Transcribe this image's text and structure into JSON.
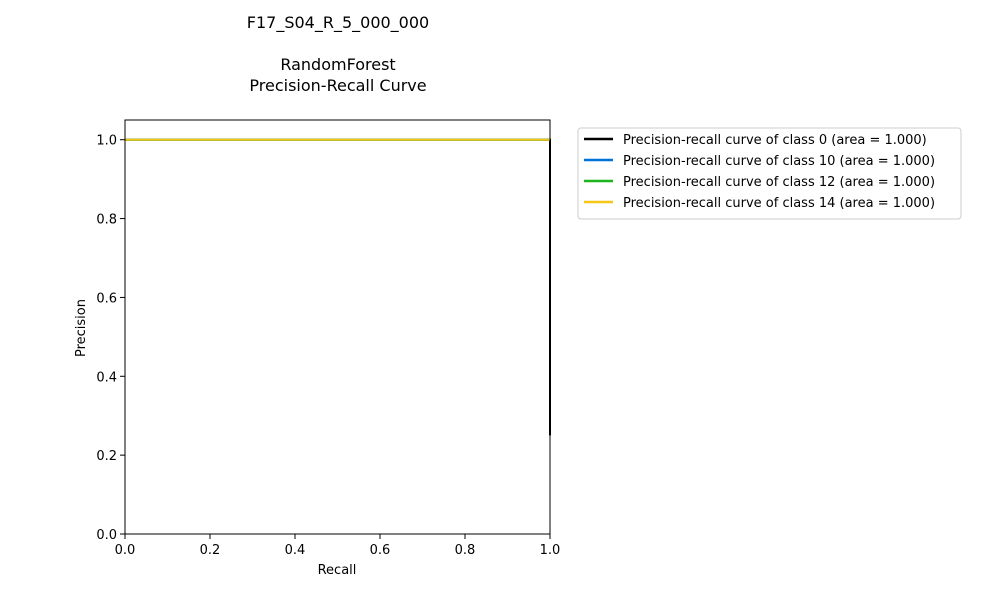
{
  "chart_data": {
    "type": "line",
    "title_lines": [
      "F17_S04_R_5_000_000",
      "",
      "RandomForest",
      "Precision-Recall Curve"
    ],
    "xlabel": "Recall",
    "ylabel": "Precision",
    "xlim": [
      0.0,
      1.0
    ],
    "ylim": [
      0.0,
      1.05
    ],
    "xticks": [
      "0.0",
      "0.2",
      "0.4",
      "0.6",
      "0.8",
      "1.0"
    ],
    "yticks": [
      "0.0",
      "0.2",
      "0.4",
      "0.6",
      "0.8",
      "1.0"
    ],
    "xtick_values": [
      0.0,
      0.2,
      0.4,
      0.6,
      0.8,
      1.0
    ],
    "ytick_values": [
      0.0,
      0.2,
      0.4,
      0.6,
      0.8,
      1.0
    ],
    "grid": false,
    "legend_position": "outside-top-right",
    "series": [
      {
        "name": "Precision-recall curve of class 0 (area = 1.000)",
        "color": "#000000",
        "x": [
          0.0,
          1.0,
          1.0
        ],
        "y": [
          1.0,
          1.0,
          0.25
        ]
      },
      {
        "name": "Precision-recall curve of class 10 (area = 1.000)",
        "color": "#0072d9",
        "x": [
          0.0,
          1.0,
          1.0
        ],
        "y": [
          1.0,
          1.0,
          1.0
        ]
      },
      {
        "name": "Precision-recall curve of class 12 (area = 1.000)",
        "color": "#1db51d",
        "x": [
          0.0,
          1.0,
          1.0
        ],
        "y": [
          1.0,
          1.0,
          1.0
        ]
      },
      {
        "name": "Precision-recall curve of class 14 (area = 1.000)",
        "color": "#f5c518",
        "x": [
          0.0,
          1.0,
          1.0
        ],
        "y": [
          1.0,
          1.0,
          1.0
        ]
      }
    ]
  }
}
